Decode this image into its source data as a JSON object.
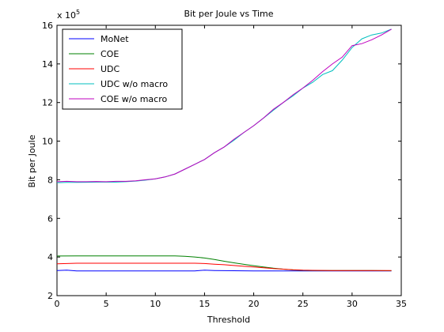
{
  "chart_data": {
    "type": "line",
    "title": "Bit per Joule vs Time",
    "xlabel": "Threshold",
    "ylabel": "Bit per Joule",
    "y_multiplier_label": "x 10",
    "y_multiplier_exponent": "5",
    "xlim": [
      0,
      35
    ],
    "ylim": [
      2,
      16
    ],
    "x_ticks": [
      0,
      5,
      10,
      15,
      20,
      25,
      30,
      35
    ],
    "y_ticks": [
      2,
      4,
      6,
      8,
      10,
      12,
      14,
      16
    ],
    "grid": false,
    "legend_position": "top-left",
    "series": [
      {
        "name": "MoNet",
        "color": "#0000ff",
        "x": [
          0,
          1,
          2,
          5,
          10,
          14,
          15,
          16,
          20,
          25,
          30,
          34
        ],
        "y": [
          3.3,
          3.32,
          3.28,
          3.28,
          3.28,
          3.28,
          3.32,
          3.3,
          3.28,
          3.28,
          3.28,
          3.28
        ]
      },
      {
        "name": "COE",
        "color": "#008000",
        "x": [
          0,
          2,
          5,
          10,
          12,
          13,
          14,
          15,
          16,
          17,
          18,
          19,
          20,
          21,
          22,
          23,
          24,
          25,
          26,
          28,
          30,
          32,
          34
        ],
        "y": [
          4.05,
          4.06,
          4.06,
          4.06,
          4.06,
          4.04,
          4.0,
          3.95,
          3.87,
          3.78,
          3.7,
          3.62,
          3.55,
          3.48,
          3.42,
          3.37,
          3.33,
          3.31,
          3.3,
          3.3,
          3.3,
          3.3,
          3.29
        ]
      },
      {
        "name": "UDC",
        "color": "#ff0000",
        "x": [
          0,
          2,
          5,
          10,
          14,
          15,
          16,
          17,
          18,
          19,
          20,
          21,
          22,
          23,
          24,
          25,
          26,
          28,
          30,
          32,
          34
        ],
        "y": [
          3.65,
          3.68,
          3.68,
          3.68,
          3.68,
          3.66,
          3.63,
          3.6,
          3.56,
          3.52,
          3.48,
          3.44,
          3.4,
          3.37,
          3.34,
          3.32,
          3.31,
          3.3,
          3.3,
          3.3,
          3.3
        ]
      },
      {
        "name": "UDC w/o macro",
        "color": "#00bfbf",
        "x": [
          0,
          1,
          2,
          3,
          4,
          5,
          6,
          7,
          8,
          9,
          10,
          11,
          12,
          13,
          14,
          15,
          16,
          17,
          18,
          19,
          20,
          21,
          22,
          23,
          24,
          25,
          26,
          27,
          28,
          29,
          30,
          31,
          32,
          33,
          34
        ],
        "y": [
          7.85,
          7.86,
          7.86,
          7.87,
          7.88,
          7.88,
          7.88,
          7.9,
          7.93,
          7.98,
          8.05,
          8.15,
          8.3,
          8.55,
          8.8,
          9.05,
          9.4,
          9.7,
          10.05,
          10.45,
          10.8,
          11.2,
          11.6,
          12.0,
          12.35,
          12.75,
          13.05,
          13.45,
          13.65,
          14.2,
          14.85,
          15.3,
          15.5,
          15.6,
          15.8
        ]
      },
      {
        "name": "COE w/o macro",
        "color": "#bf00bf",
        "x": [
          0,
          1,
          2,
          3,
          4,
          5,
          6,
          7,
          8,
          9,
          10,
          11,
          12,
          13,
          14,
          15,
          16,
          17,
          18,
          19,
          20,
          21,
          22,
          23,
          24,
          25,
          26,
          27,
          28,
          29,
          30,
          31,
          32,
          33,
          34
        ],
        "y": [
          7.9,
          7.92,
          7.9,
          7.9,
          7.91,
          7.9,
          7.92,
          7.92,
          7.95,
          8.0,
          8.05,
          8.15,
          8.3,
          8.55,
          8.8,
          9.05,
          9.4,
          9.7,
          10.1,
          10.45,
          10.8,
          11.2,
          11.65,
          12.0,
          12.4,
          12.75,
          13.15,
          13.6,
          14.0,
          14.35,
          14.95,
          15.05,
          15.25,
          15.5,
          15.8
        ]
      }
    ]
  }
}
